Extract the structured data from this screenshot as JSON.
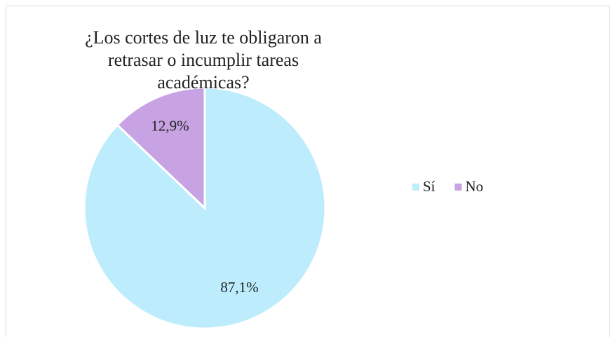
{
  "chart_data": {
    "type": "pie",
    "title": "¿Los cortes de luz te obligaron a retrasar o incumplir tareas académicas?",
    "categories": [
      "Sí",
      "No"
    ],
    "values": [
      87.1,
      12.9
    ],
    "value_labels": [
      "87,1%",
      "12,9%"
    ],
    "colors": [
      "#bdedfc",
      "#c8a3e3"
    ],
    "legend": "right"
  }
}
